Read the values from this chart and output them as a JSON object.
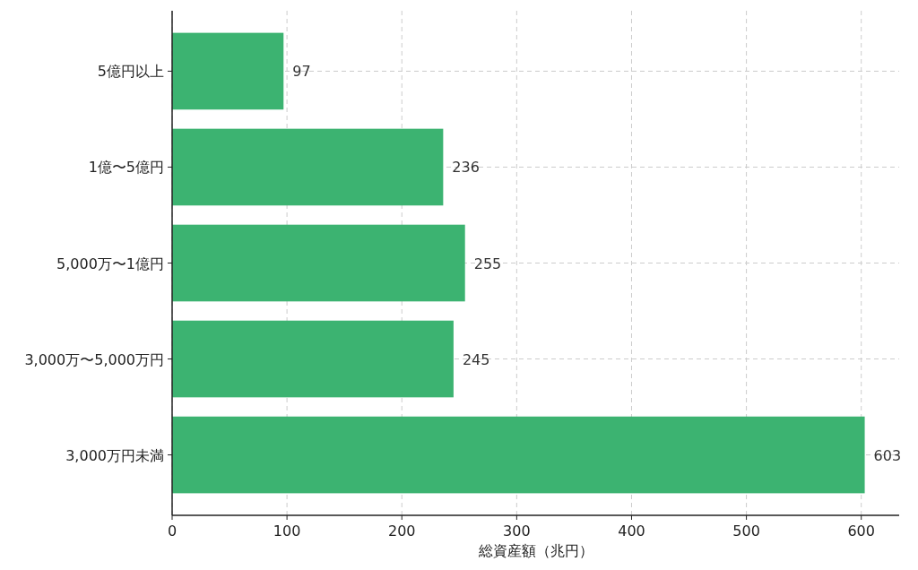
{
  "chart_data": {
    "type": "bar",
    "orientation": "horizontal",
    "xlabel": "総資産額（兆円）",
    "categories": [
      "5億円以上",
      "1億〜5億円",
      "5,000万〜1億円",
      "3,000万〜5,000万円",
      "3,000万円未満"
    ],
    "values": [
      97,
      236,
      255,
      245,
      603
    ],
    "color": "#3cb371",
    "xlim": [
      0,
      633
    ],
    "xticks": [
      0,
      100,
      200,
      300,
      400,
      500,
      600
    ],
    "grid": true,
    "data_labels": true
  }
}
